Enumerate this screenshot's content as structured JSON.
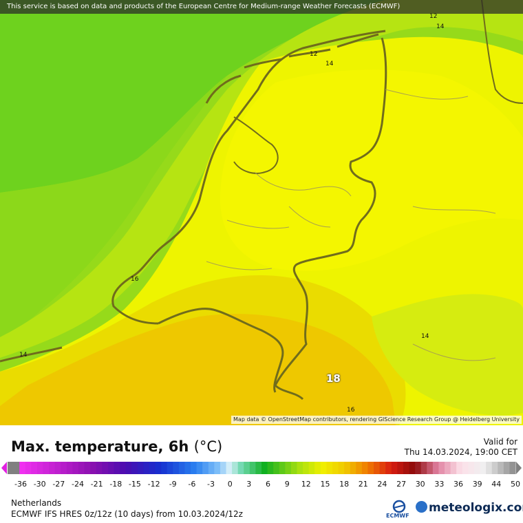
{
  "map": {
    "banner": "This service is based on data and products of the European Centre for Medium-range Weather Forecasts (ECMWF)",
    "attribution": "Map data © OpenStreetMap contributors, rendering GIScience Research Group @ Heidelberg University",
    "isolines": {
      "l12a": "12",
      "l14a": "14",
      "l12b": "12",
      "l14b": "14",
      "l16": "16",
      "l14w": "14",
      "l14e": "14",
      "l18": "18",
      "l16s": "16"
    },
    "colors": {
      "sea_green": "#6ed21e",
      "cool_green": "#a8e216",
      "yellow": "#f2f500",
      "warm_yellow": "#e6d800",
      "orange_yellow": "#eec600",
      "border": "#706c1c"
    }
  },
  "legend": {
    "title": "Max. temperature, 6h",
    "unit": "(°C)",
    "valid_label": "Valid for",
    "valid_date": "Thu 14.03.2024, 19:00 CET",
    "ticks": [
      "-36",
      "-30",
      "-27",
      "-24",
      "-21",
      "-18",
      "-15",
      "-12",
      "-9",
      "-6",
      "-3",
      "0",
      "3",
      "6",
      "9",
      "12",
      "15",
      "18",
      "21",
      "24",
      "27",
      "30",
      "33",
      "36",
      "39",
      "44",
      "50"
    ]
  },
  "footer": {
    "region": "Netherlands",
    "model": "ECMWF IFS HRES 0z/12z (10 days) from 10.03.2024/12z",
    "ecmwf": "ECMWF",
    "brand": "meteologix.com"
  }
}
